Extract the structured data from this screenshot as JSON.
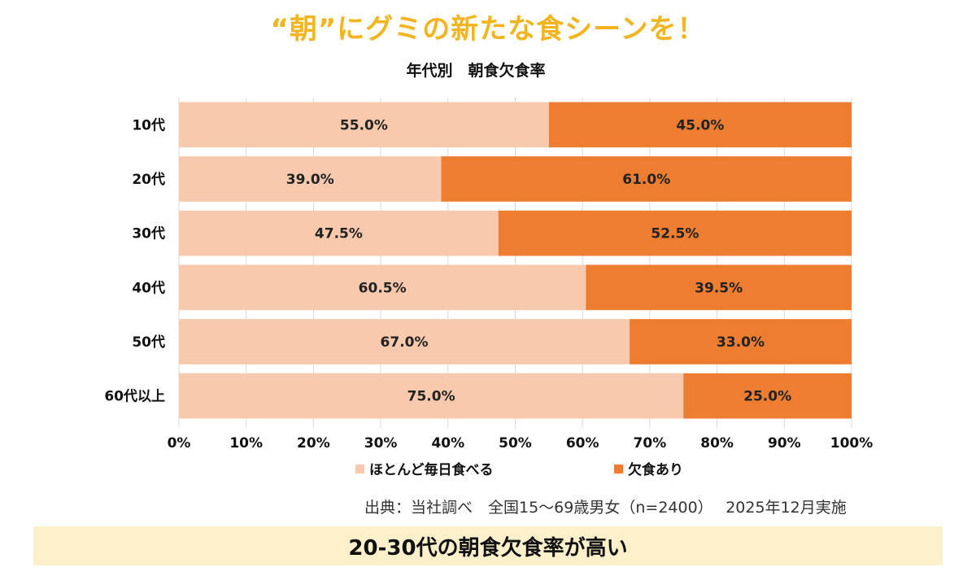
{
  "headline": "“朝”にグミの新たな食シーンを！",
  "source_note": "出典：当社調べ　全国15～69歳男女（n=2400）　 2025年12月実施",
  "banner_text": "20-30代の朝食欠食率が高い",
  "colors": {
    "headline": "#f2b51f",
    "eat_daily": "#f8c9ad",
    "skip": "#ed7d31",
    "banner_bg": "#fff0cc"
  },
  "chart_data": {
    "type": "bar",
    "orientation": "horizontal",
    "stacked": true,
    "title": "年代別　朝食欠食率",
    "categories": [
      "10代",
      "20代",
      "30代",
      "40代",
      "50代",
      "60代以上"
    ],
    "series": [
      {
        "name": "ほとんど毎日食べる",
        "color": "#f8c9ad",
        "values": [
          55.0,
          39.0,
          47.5,
          60.5,
          67.0,
          75.0
        ],
        "labels": [
          "55.0%",
          "39.0%",
          "47.5%",
          "60.5%",
          "67.0%",
          "75.0%"
        ]
      },
      {
        "name": "欠食あり",
        "color": "#ed7d31",
        "values": [
          45.0,
          61.0,
          52.5,
          39.5,
          33.0,
          25.0
        ],
        "labels": [
          "45.0%",
          "61.0%",
          "52.5%",
          "39.5%",
          "33.0%",
          "25.0%"
        ]
      }
    ],
    "xlim": [
      0,
      100
    ],
    "x_ticks": [
      "0%",
      "10%",
      "20%",
      "30%",
      "40%",
      "50%",
      "60%",
      "70%",
      "80%",
      "90%",
      "100%"
    ],
    "gridlines": true,
    "legend": "bottom"
  }
}
